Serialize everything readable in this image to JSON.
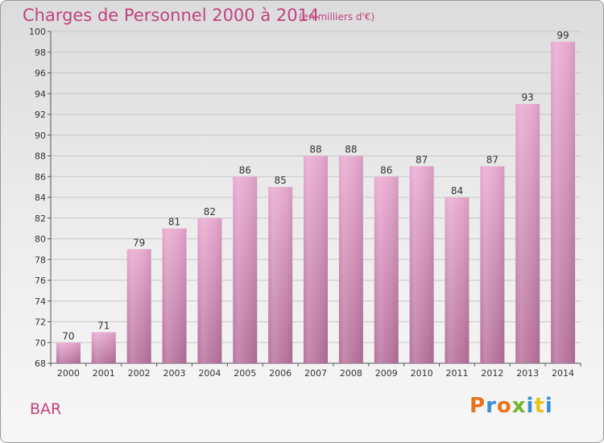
{
  "header": {
    "title": "Charges de Personnel 2000 à 2014",
    "subtitle": "(en milliers d'€)"
  },
  "footer": {
    "commune": "BAR",
    "logo": "Proxiti",
    "logo_colors": [
      "#e8731d",
      "#3a8ed6",
      "#e8731d",
      "#74b52a",
      "#3a8ed6",
      "#e8c31d",
      "#3a8ed6"
    ]
  },
  "chart_data": {
    "type": "bar",
    "categories": [
      "2000",
      "2001",
      "2002",
      "2003",
      "2004",
      "2005",
      "2006",
      "2007",
      "2008",
      "2009",
      "2010",
      "2011",
      "2012",
      "2013",
      "2014"
    ],
    "values": [
      70,
      71,
      79,
      81,
      82,
      86,
      85,
      88,
      88,
      86,
      87,
      84,
      87,
      93,
      99
    ],
    "ylim": [
      68,
      100
    ],
    "yticks": [
      68,
      70,
      72,
      74,
      76,
      78,
      80,
      82,
      84,
      86,
      88,
      90,
      92,
      94,
      96,
      98,
      100
    ],
    "grid": true,
    "bar_color": "#e0a0c8"
  }
}
